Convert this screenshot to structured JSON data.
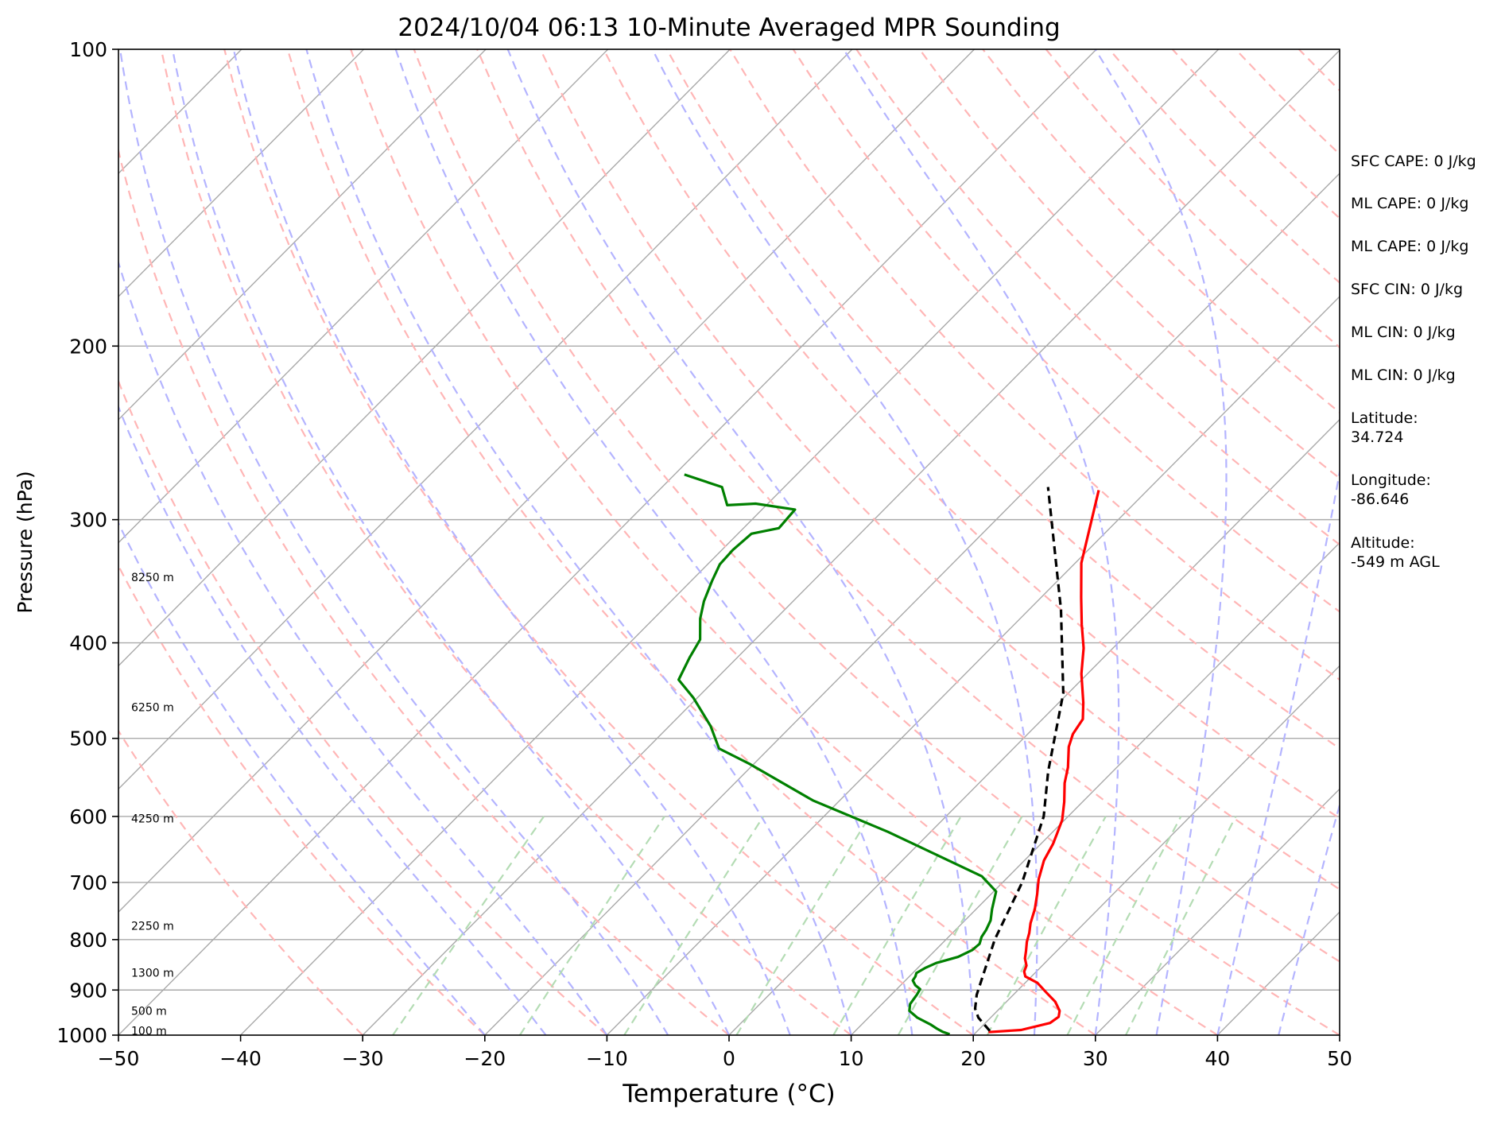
{
  "chart_data": {
    "type": "line",
    "subtype": "skew-t log-p sounding",
    "title": "2024/10/04 06:13 10-Minute Averaged MPR Sounding",
    "xlabel": "Temperature (°C)",
    "ylabel": "Pressure (hPa)",
    "xlim": [
      -50,
      50
    ],
    "ylim": [
      1000,
      100
    ],
    "y_scale": "log",
    "x_ticks": [
      "−50",
      "−40",
      "−30",
      "−20",
      "−10",
      "0",
      "10",
      "20",
      "30",
      "40",
      "50"
    ],
    "y_ticks": [
      "100",
      "200",
      "300",
      "400",
      "500",
      "600",
      "700",
      "800",
      "900",
      "1000"
    ],
    "height_labels": [
      {
        "p": 990,
        "text": "100 m"
      },
      {
        "p": 945,
        "text": "500 m"
      },
      {
        "p": 864,
        "text": "1300 m"
      },
      {
        "p": 775,
        "text": "2250 m"
      },
      {
        "p": 603,
        "text": "4250 m"
      },
      {
        "p": 465,
        "text": "6250 m"
      },
      {
        "p": 343,
        "text": "8250 m"
      }
    ],
    "series": [
      {
        "color": "#ff0000",
        "x": [
          21.0,
          23.5,
          25.3,
          25.5,
          25.1,
          24.0,
          22.5,
          21.0,
          19.5,
          19.0,
          18.7,
          18.0,
          17.5,
          16.8,
          16.3,
          15.6,
          14.8,
          13.8,
          12.7,
          11.6,
          11.0,
          10.5,
          9.8,
          8.5,
          7.0,
          6.0,
          4.4,
          3.7,
          3.3,
          2.0,
          -0.5,
          -2.4,
          -4.5,
          -6.7,
          -9.5,
          -12.0,
          -14.0
        ],
        "y": [
          993,
          988,
          972,
          958,
          945,
          925,
          905,
          885,
          872,
          862,
          850,
          836,
          822,
          804,
          788,
          770,
          745,
          720,
          695,
          665,
          640,
          625,
          605,
          580,
          555,
          535,
          510,
          495,
          478,
          460,
          430,
          405,
          383,
          360,
          332,
          302,
          280
        ]
      },
      {
        "color": "#008000",
        "x": [
          18.0,
          17.2,
          16.5,
          15.6,
          14.0,
          12.8,
          12.3,
          12.1,
          11.9,
          11.2,
          10.6,
          10.5,
          10.3,
          10.6,
          11.1,
          12.4,
          13.0,
          13.1,
          12.7,
          12.5,
          12.1,
          11.3,
          10.2,
          7.8,
          -3.5,
          -12.2,
          -20.3,
          -24.1,
          -26.6,
          -30.3,
          -33.0,
          -33.9,
          -34.5,
          -36.2,
          -37.3,
          -38.3,
          -39.0,
          -39.1,
          -38.9,
          -37.1,
          -37.3,
          -41.0,
          -43.2,
          -45.1,
          -49.2
        ],
        "y": [
          998,
          992,
          985,
          975,
          960,
          945,
          930,
          910,
          898,
          890,
          880,
          872,
          865,
          855,
          845,
          833,
          820,
          808,
          795,
          782,
          765,
          745,
          715,
          690,
          622,
          578,
          531,
          512,
          486,
          455,
          436,
          414,
          397,
          378,
          363,
          346,
          333,
          322,
          310,
          306,
          293,
          289,
          290,
          278,
          270
        ]
      },
      {
        "color": "#000000",
        "dashed": true,
        "x": [
          21.0,
          19.0,
          18.0,
          17.0,
          14.0,
          11.6,
          8.0,
          4.7,
          -0.4,
          -7.4,
          -18.4
        ],
        "y": [
          990,
          960,
          940,
          910,
          800,
          700,
          600,
          540,
          450,
          370,
          278
        ]
      }
    ],
    "annotations": [
      "SFC CAPE: 0 J/kg",
      "ML CAPE: 0 J/kg",
      "ML CAPE: 0 J/kg",
      "SFC CIN: 0 J/kg",
      "ML CIN: 0 J/kg",
      "ML CIN: 0 J/kg",
      "Latitude:",
      "34.724",
      "Longitude:",
      "-86.646",
      "Altitude:",
      "-549 m AGL"
    ],
    "grid": true,
    "background_lines": {
      "isotherms_color": "#a9a9a9",
      "dry_adiabats_color": "#ffb6b6",
      "moist_adiabats_color": "#b4b4ff",
      "mixing_ratio_color": "#b4dcb4"
    }
  }
}
